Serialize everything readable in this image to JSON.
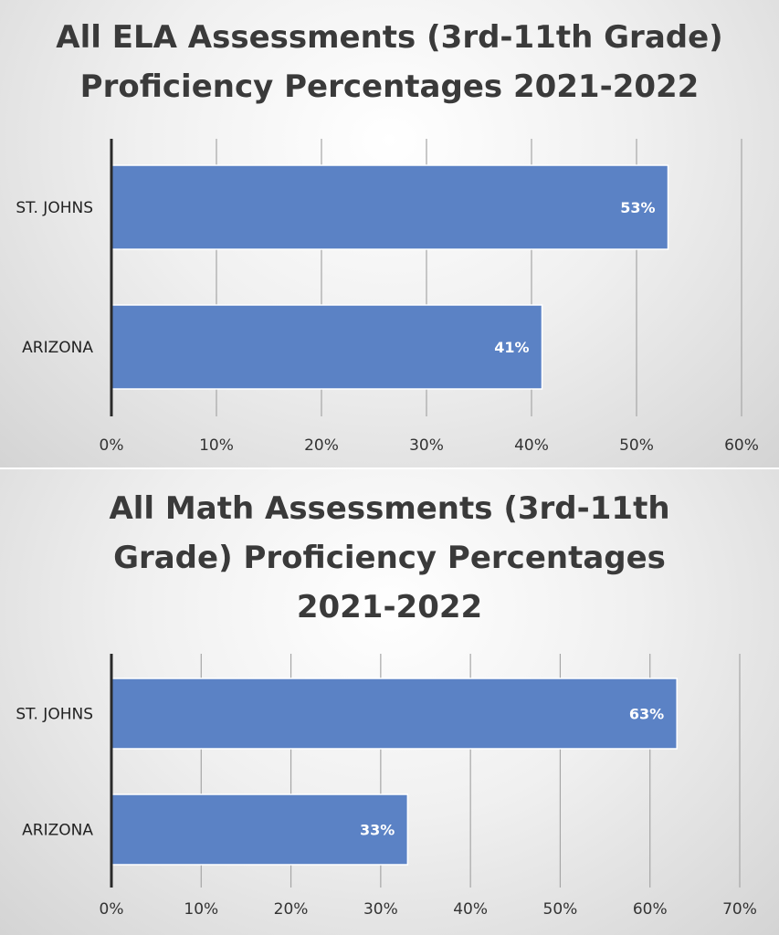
{
  "chart_data": [
    {
      "type": "bar",
      "orientation": "horizontal",
      "title": "All ELA Assessments (3rd-11th Grade) Proficiency Percentages 2021-2022",
      "categories": [
        "ST. JOHNS",
        "ARIZONA"
      ],
      "values": [
        53,
        41
      ],
      "data_labels": [
        "53%",
        "41%"
      ],
      "xlim": [
        0,
        60
      ],
      "ticks": [
        "0%",
        "10%",
        "20%",
        "30%",
        "40%",
        "50%",
        "60%"
      ],
      "grid": "vertical",
      "bar_color": "#5b82c5",
      "legend": "none"
    },
    {
      "type": "bar",
      "orientation": "horizontal",
      "title": "All Math Assessments (3rd-11th Grade) Proficiency Percentages 2021-2022",
      "categories": [
        "ST. JOHNS",
        "ARIZONA"
      ],
      "values": [
        63,
        33
      ],
      "data_labels": [
        "63%",
        "33%"
      ],
      "xlim": [
        0,
        70
      ],
      "ticks": [
        "0%",
        "10%",
        "20%",
        "30%",
        "40%",
        "50%",
        "60%",
        "70%"
      ],
      "grid": "vertical",
      "bar_color": "#5b82c5",
      "legend": "none"
    }
  ]
}
